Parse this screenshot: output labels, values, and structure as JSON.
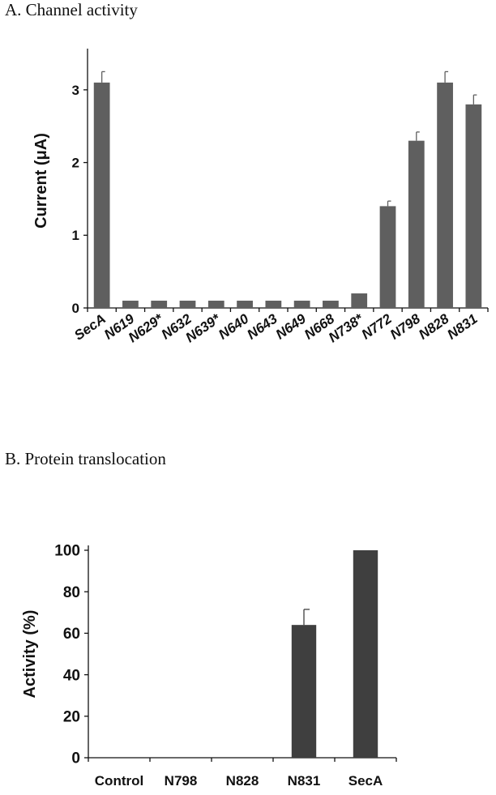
{
  "panels": {
    "a_title": "A. Channel activity",
    "b_title": "B. Protein translocation"
  },
  "colors": {
    "bar_a": "#5f5f5f",
    "bar_b": "#3f3f3f",
    "axis": "#111111"
  },
  "chart_data": [
    {
      "type": "bar",
      "title": "A. Channel activity",
      "ylabel": "Current (μA)",
      "xlabel": "",
      "ylim": [
        0,
        3.5
      ],
      "yticks": [
        "0",
        "1",
        "2",
        "3"
      ],
      "tick_values": [
        0,
        1,
        2,
        3
      ],
      "categories": [
        "SecA",
        "N619",
        "N629*",
        "N632",
        "N639*",
        "N640",
        "N643",
        "N649",
        "N668",
        "N738*",
        "N772",
        "N798",
        "N828",
        "N831"
      ],
      "values": [
        3.1,
        0.1,
        0.1,
        0.1,
        0.1,
        0.1,
        0.1,
        0.1,
        0.1,
        0.2,
        1.4,
        2.3,
        3.1,
        2.8
      ],
      "errors": [
        0.15,
        0,
        0,
        0,
        0,
        0,
        0,
        0,
        0,
        0,
        0.07,
        0.12,
        0.15,
        0.13
      ],
      "label_style": "rotated-italic"
    },
    {
      "type": "bar",
      "title": "B. Protein translocation",
      "ylabel": "Activity (%)",
      "xlabel": "",
      "ylim": [
        0,
        100
      ],
      "yticks": [
        "0",
        "20",
        "40",
        "60",
        "80",
        "100"
      ],
      "tick_values": [
        0,
        20,
        40,
        60,
        80,
        100
      ],
      "categories": [
        "Control",
        "N798",
        "N828",
        "N831",
        "SecA"
      ],
      "values": [
        0,
        0,
        0,
        64,
        100
      ],
      "errors": [
        0,
        0,
        0,
        7.5,
        0
      ],
      "label_style": "horizontal"
    }
  ]
}
